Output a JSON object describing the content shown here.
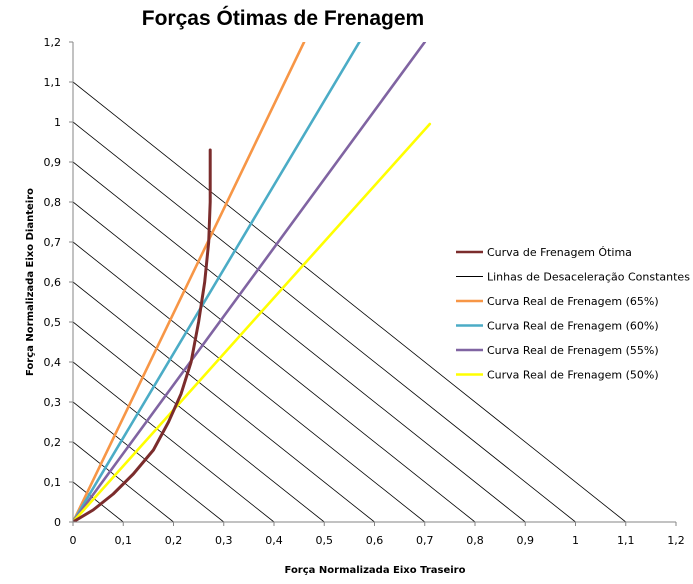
{
  "chart_data": {
    "type": "line",
    "title": "Forças Ótimas de Frenagem",
    "xlabel": "Força Normalizada Eixo Traseiro",
    "ylabel": "Força Normalizada Eixo Dianteiro",
    "xlim": [
      0,
      1.2
    ],
    "ylim": [
      0,
      1.2
    ],
    "x_ticks": [
      "0",
      "0,1",
      "0,2",
      "0,3",
      "0,4",
      "0,5",
      "0,6",
      "0,7",
      "0,8",
      "0,9",
      "1",
      "1,1",
      "1,2"
    ],
    "y_ticks": [
      "0",
      "0,1",
      "0,2",
      "0,3",
      "0,4",
      "0,5",
      "0,6",
      "0,7",
      "0,8",
      "0,9",
      "1",
      "1,1",
      "1,2"
    ],
    "grid": false,
    "legend_position": "right",
    "series": [
      {
        "name": "Curva de Frenagem Ótima",
        "color": "#7b2c2c",
        "points": [
          [
            0,
            0
          ],
          [
            0.04,
            0.03
          ],
          [
            0.08,
            0.07
          ],
          [
            0.12,
            0.12
          ],
          [
            0.16,
            0.18
          ],
          [
            0.19,
            0.25
          ],
          [
            0.215,
            0.32
          ],
          [
            0.235,
            0.4
          ],
          [
            0.25,
            0.5
          ],
          [
            0.262,
            0.6
          ],
          [
            0.27,
            0.7
          ],
          [
            0.273,
            0.8
          ],
          [
            0.273,
            0.93
          ]
        ]
      },
      {
        "name": "Linhas de Desaceleração Constantes",
        "color": "#000000",
        "type": "family",
        "intercepts": [
          0.1,
          0.2,
          0.3,
          0.4,
          0.5,
          0.6,
          0.7,
          0.8,
          0.9,
          1.0,
          1.1
        ]
      },
      {
        "name": "Curva Real de Frenagem (65%)",
        "color": "#f79646",
        "points": [
          [
            0,
            0
          ],
          [
            0.46,
            1.2
          ]
        ]
      },
      {
        "name": "Curva Real de Frenagem (60%)",
        "color": "#4bacc6",
        "points": [
          [
            0,
            0
          ],
          [
            0.57,
            1.2
          ]
        ]
      },
      {
        "name": "Curva Real de Frenagem (55%)",
        "color": "#8064a2",
        "points": [
          [
            0,
            0
          ],
          [
            0.7,
            1.2
          ]
        ]
      },
      {
        "name": "Curva Real de Frenagem (50%)",
        "color": "#ffff00",
        "points": [
          [
            0,
            0
          ],
          [
            0.71,
            0.995
          ]
        ]
      }
    ]
  }
}
